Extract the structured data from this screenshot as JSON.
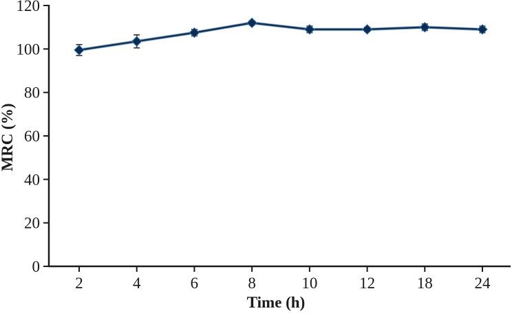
{
  "chart_data": {
    "type": "line",
    "title": "",
    "xlabel": "Time (h)",
    "ylabel": "MRC (%)",
    "categories": [
      "2",
      "4",
      "6",
      "8",
      "10",
      "12",
      "18",
      "24"
    ],
    "series": [
      {
        "name": "MRC",
        "values": [
          99.5,
          103.5,
          107.5,
          112,
          109,
          109,
          110,
          109
        ],
        "errors": [
          2.5,
          3,
          1.5,
          1,
          1.5,
          1,
          1.5,
          1.5
        ]
      }
    ],
    "ylim": [
      0,
      120
    ],
    "yticks": [
      0,
      20,
      40,
      60,
      80,
      100,
      120
    ],
    "grid": false,
    "legend": "none",
    "marker": "diamond",
    "colors": {
      "line_dark": "#14324f",
      "line_sheen": "#3a7abf",
      "marker_fill": "#0e2c50",
      "marker_edge": "#2e75b6",
      "error_bar": "#3f3f3f",
      "axis": "#1a1a1a",
      "text": "#1a1a1a",
      "background": "#ffffff"
    }
  }
}
